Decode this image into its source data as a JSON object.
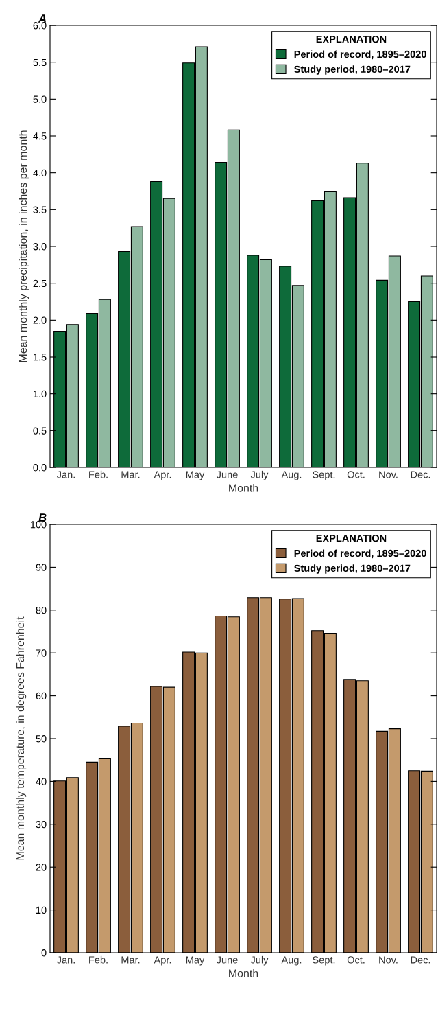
{
  "chart_data": [
    {
      "type": "bar",
      "title": "A",
      "xlabel": "Month",
      "ylabel": "Mean monthly precipitation, in inches per month",
      "legend_title": "EXPLANATION",
      "legend": "top right",
      "categories": [
        "Jan.",
        "Feb.",
        "Mar.",
        "Apr.",
        "May",
        "June",
        "July",
        "Aug.",
        "Sept.",
        "Oct.",
        "Nov.",
        "Dec."
      ],
      "series": [
        {
          "name": "Period of record, 1895–2020",
          "color": "#0e6b3a",
          "values": [
            1.85,
            2.09,
            2.93,
            3.88,
            5.49,
            4.14,
            2.88,
            2.73,
            3.62,
            3.66,
            2.54,
            2.25
          ]
        },
        {
          "name": "Study period, 1980–2017",
          "color": "#8fb8a0",
          "values": [
            1.94,
            2.28,
            3.27,
            3.65,
            5.71,
            4.58,
            2.82,
            2.47,
            3.75,
            4.13,
            2.87,
            2.6
          ]
        }
      ],
      "ylim": [
        0,
        6
      ],
      "yticks": [
        {
          "value": 0,
          "label": "0.0"
        },
        {
          "value": 0.5,
          "label": "0.5"
        },
        {
          "value": 1,
          "label": "1.0"
        },
        {
          "value": 1.5,
          "label": "1.5"
        },
        {
          "value": 2,
          "label": "2.0"
        },
        {
          "value": 2.5,
          "label": "2.5"
        },
        {
          "value": 3,
          "label": "3.0"
        },
        {
          "value": 3.5,
          "label": "3.5"
        },
        {
          "value": 4,
          "label": "4.0"
        },
        {
          "value": 4.5,
          "label": "4.5"
        },
        {
          "value": 5,
          "label": "5.0"
        },
        {
          "value": 5.5,
          "label": "5.5"
        },
        {
          "value": 6,
          "label": "6.0"
        }
      ],
      "grid": false
    },
    {
      "type": "bar",
      "title": "B",
      "xlabel": "Month",
      "ylabel": "Mean monthly temperature, in degrees Fahrenheit",
      "legend_title": "EXPLANATION",
      "legend": "top right",
      "categories": [
        "Jan.",
        "Feb.",
        "Mar.",
        "Apr.",
        "May",
        "June",
        "July",
        "Aug.",
        "Sept.",
        "Oct.",
        "Nov.",
        "Dec."
      ],
      "series": [
        {
          "name": "Period of record, 1895–2020",
          "color": "#8b5e3c",
          "values": [
            40.1,
            44.5,
            52.9,
            62.2,
            70.2,
            78.6,
            82.9,
            82.6,
            75.2,
            63.8,
            51.7,
            42.5
          ]
        },
        {
          "name": "Study period, 1980–2017",
          "color": "#c49a6c",
          "values": [
            40.9,
            45.3,
            53.6,
            62.0,
            70.0,
            78.4,
            82.9,
            82.7,
            74.6,
            63.5,
            52.3,
            42.4
          ]
        }
      ],
      "ylim": [
        0,
        100
      ],
      "yticks": [
        0,
        10,
        20,
        30,
        40,
        50,
        60,
        70,
        80,
        90,
        100
      ],
      "grid": false
    }
  ]
}
